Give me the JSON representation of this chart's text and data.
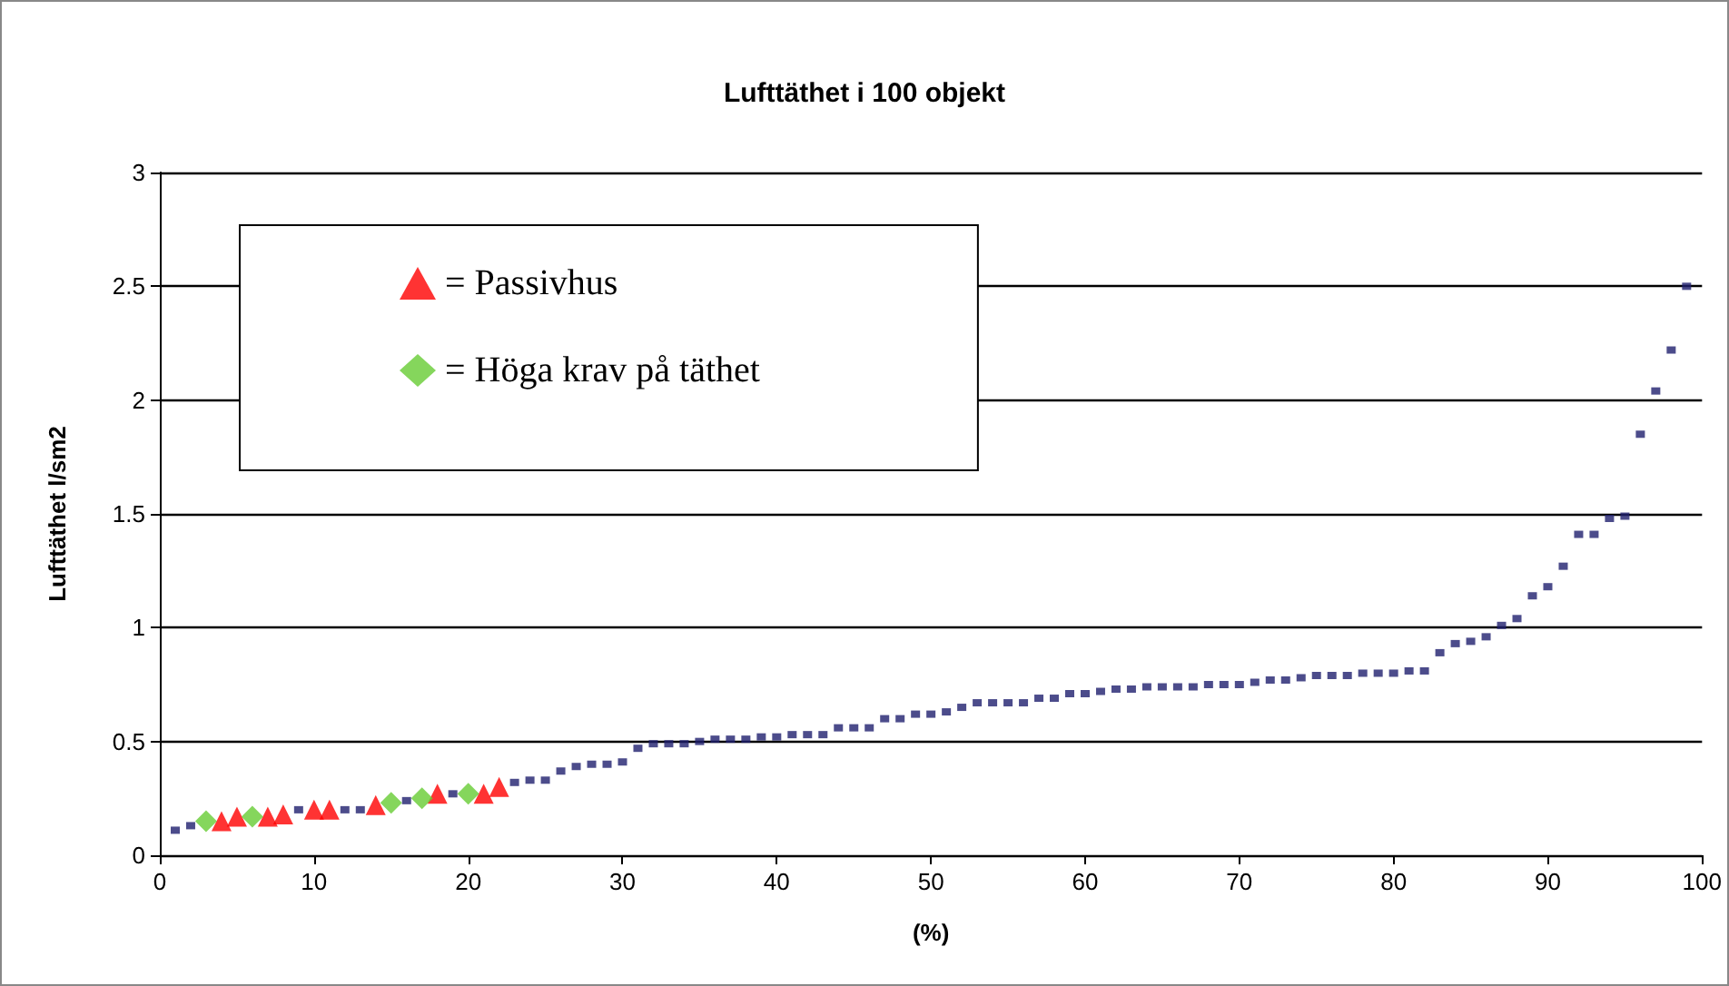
{
  "chart_data": {
    "type": "scatter",
    "title": "Lufttäthet i 100 objekt",
    "xlabel": "(%)",
    "ylabel": "Lufttäthet l/sm2",
    "xlim": [
      0,
      100
    ],
    "xticks": [
      0,
      10,
      20,
      30,
      40,
      50,
      60,
      70,
      80,
      90,
      100
    ],
    "ylim": [
      0,
      3
    ],
    "yticks": [
      0,
      0.5,
      1,
      1.5,
      2,
      2.5,
      3
    ],
    "grid": "y",
    "legend": "top left",
    "series": [
      {
        "color": "#1f1f6e",
        "marker": "square",
        "x": [
          1,
          2,
          9,
          12,
          13,
          16,
          19,
          23,
          24,
          25,
          26,
          27,
          28,
          29,
          30,
          31,
          32,
          33,
          34,
          35,
          36,
          37,
          38,
          39,
          40,
          41,
          42,
          43,
          44,
          45,
          46,
          47,
          48,
          49,
          50,
          51,
          52,
          53,
          54,
          55,
          56,
          57,
          58,
          59,
          60,
          61,
          62,
          63,
          64,
          65,
          66,
          67,
          68,
          69,
          70,
          71,
          72,
          73,
          74,
          75,
          76,
          77,
          78,
          79,
          80,
          81,
          82,
          83,
          84,
          85,
          86,
          87,
          88,
          89,
          90,
          91,
          92,
          93,
          94,
          95,
          96,
          97,
          98,
          99
        ],
        "values": [
          0.11,
          0.13,
          0.2,
          0.2,
          0.2,
          0.24,
          0.27,
          0.32,
          0.33,
          0.33,
          0.37,
          0.39,
          0.4,
          0.4,
          0.41,
          0.47,
          0.49,
          0.49,
          0.49,
          0.5,
          0.51,
          0.51,
          0.51,
          0.52,
          0.52,
          0.53,
          0.53,
          0.53,
          0.56,
          0.56,
          0.56,
          0.6,
          0.6,
          0.62,
          0.62,
          0.63,
          0.65,
          0.67,
          0.67,
          0.67,
          0.67,
          0.69,
          0.69,
          0.71,
          0.71,
          0.72,
          0.73,
          0.73,
          0.74,
          0.74,
          0.74,
          0.74,
          0.75,
          0.75,
          0.75,
          0.76,
          0.77,
          0.77,
          0.78,
          0.79,
          0.79,
          0.79,
          0.8,
          0.8,
          0.8,
          0.81,
          0.81,
          0.89,
          0.93,
          0.94,
          0.96,
          1.01,
          1.04,
          1.14,
          1.18,
          1.27,
          1.41,
          1.41,
          1.48,
          1.49,
          1.85,
          2.04,
          2.22,
          2.5
        ]
      },
      {
        "name": "= Passivhus",
        "color": "#ff0000",
        "marker": "triangle",
        "x": [
          4,
          5,
          7,
          8,
          10,
          11,
          14,
          18,
          21,
          22
        ],
        "values": [
          0.15,
          0.17,
          0.17,
          0.18,
          0.2,
          0.2,
          0.22,
          0.27,
          0.27,
          0.3
        ]
      },
      {
        "name": "= Höga krav på täthet",
        "color": "#66cc33",
        "marker": "diamond",
        "x": [
          3,
          6,
          15,
          17,
          20
        ],
        "values": [
          0.15,
          0.17,
          0.23,
          0.25,
          0.27
        ]
      }
    ]
  }
}
